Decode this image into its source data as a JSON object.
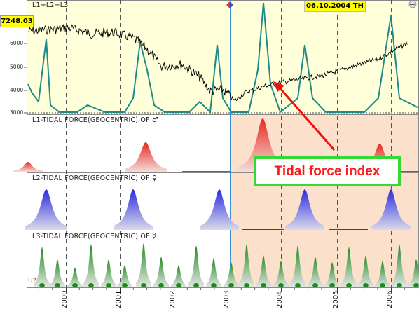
{
  "top_panel": {
    "label": "L1+L2+L3",
    "current_value": "7248.03",
    "date_label": "06.10.2004 TH",
    "y_ticks": [
      "6000",
      "5000",
      "4000",
      "3000"
    ]
  },
  "panels": [
    {
      "label": "L1-TIDAL FORCE(GEOCENTRIC) OF ♂"
    },
    {
      "label": "L2-TIDAL FORCE(GEOCENTRIC) OF ♀"
    },
    {
      "label": "L3-TIDAL FORCE(GEOCENTRIC) OF ☿"
    }
  ],
  "bottom_marker": "U?",
  "x_axis_labels": [
    "2000",
    "2001",
    "2002",
    "2003",
    "2004",
    "2005",
    "2006"
  ],
  "annotation": {
    "text": "Tidal force index"
  },
  "colors": {
    "top_bg": "#ffffd9",
    "shaded_region": "#fbe0cc",
    "index_line": "#000000",
    "tidal_line": "#1e8a8a",
    "l1_peak": "#e8281e",
    "l2_peak": "#2a2ae0",
    "l3_peak": "#1c8a1c",
    "arrow": "#ee1111",
    "annotation_border": "#34d934"
  },
  "icons": [
    "cursor-marker-icon",
    "corner-close-icon"
  ]
}
